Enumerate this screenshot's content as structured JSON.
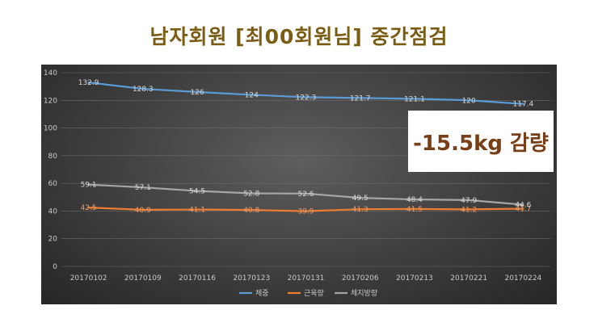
{
  "title": "남자회원 [최00회원님] 중간점검",
  "callout": "-15.5kg 감량",
  "chart_data": {
    "type": "line",
    "categories": [
      "20170102",
      "20170109",
      "20170116",
      "20170123",
      "20170131",
      "20170206",
      "20170213",
      "20170221",
      "20170224"
    ],
    "ylim": [
      0,
      140
    ],
    "yticks": [
      0,
      20,
      40,
      60,
      80,
      100,
      120,
      140
    ],
    "grid": true,
    "legend_position": "bottom",
    "series": [
      {
        "name": "체중",
        "color": "#5b9bd5",
        "values": [
          132.9,
          128.3,
          126,
          124,
          122.3,
          121.7,
          121.1,
          120,
          117.4
        ]
      },
      {
        "name": "근육량",
        "color": "#ed7d31",
        "values": [
          42.5,
          40.9,
          41.1,
          40.8,
          39.9,
          41.3,
          41.5,
          41.2,
          41.7
        ]
      },
      {
        "name": "체지방량",
        "color": "#a5a5a5",
        "values": [
          59.1,
          57.1,
          54.5,
          52.8,
          52.6,
          49.5,
          48.4,
          47.9,
          44.6
        ]
      }
    ]
  }
}
